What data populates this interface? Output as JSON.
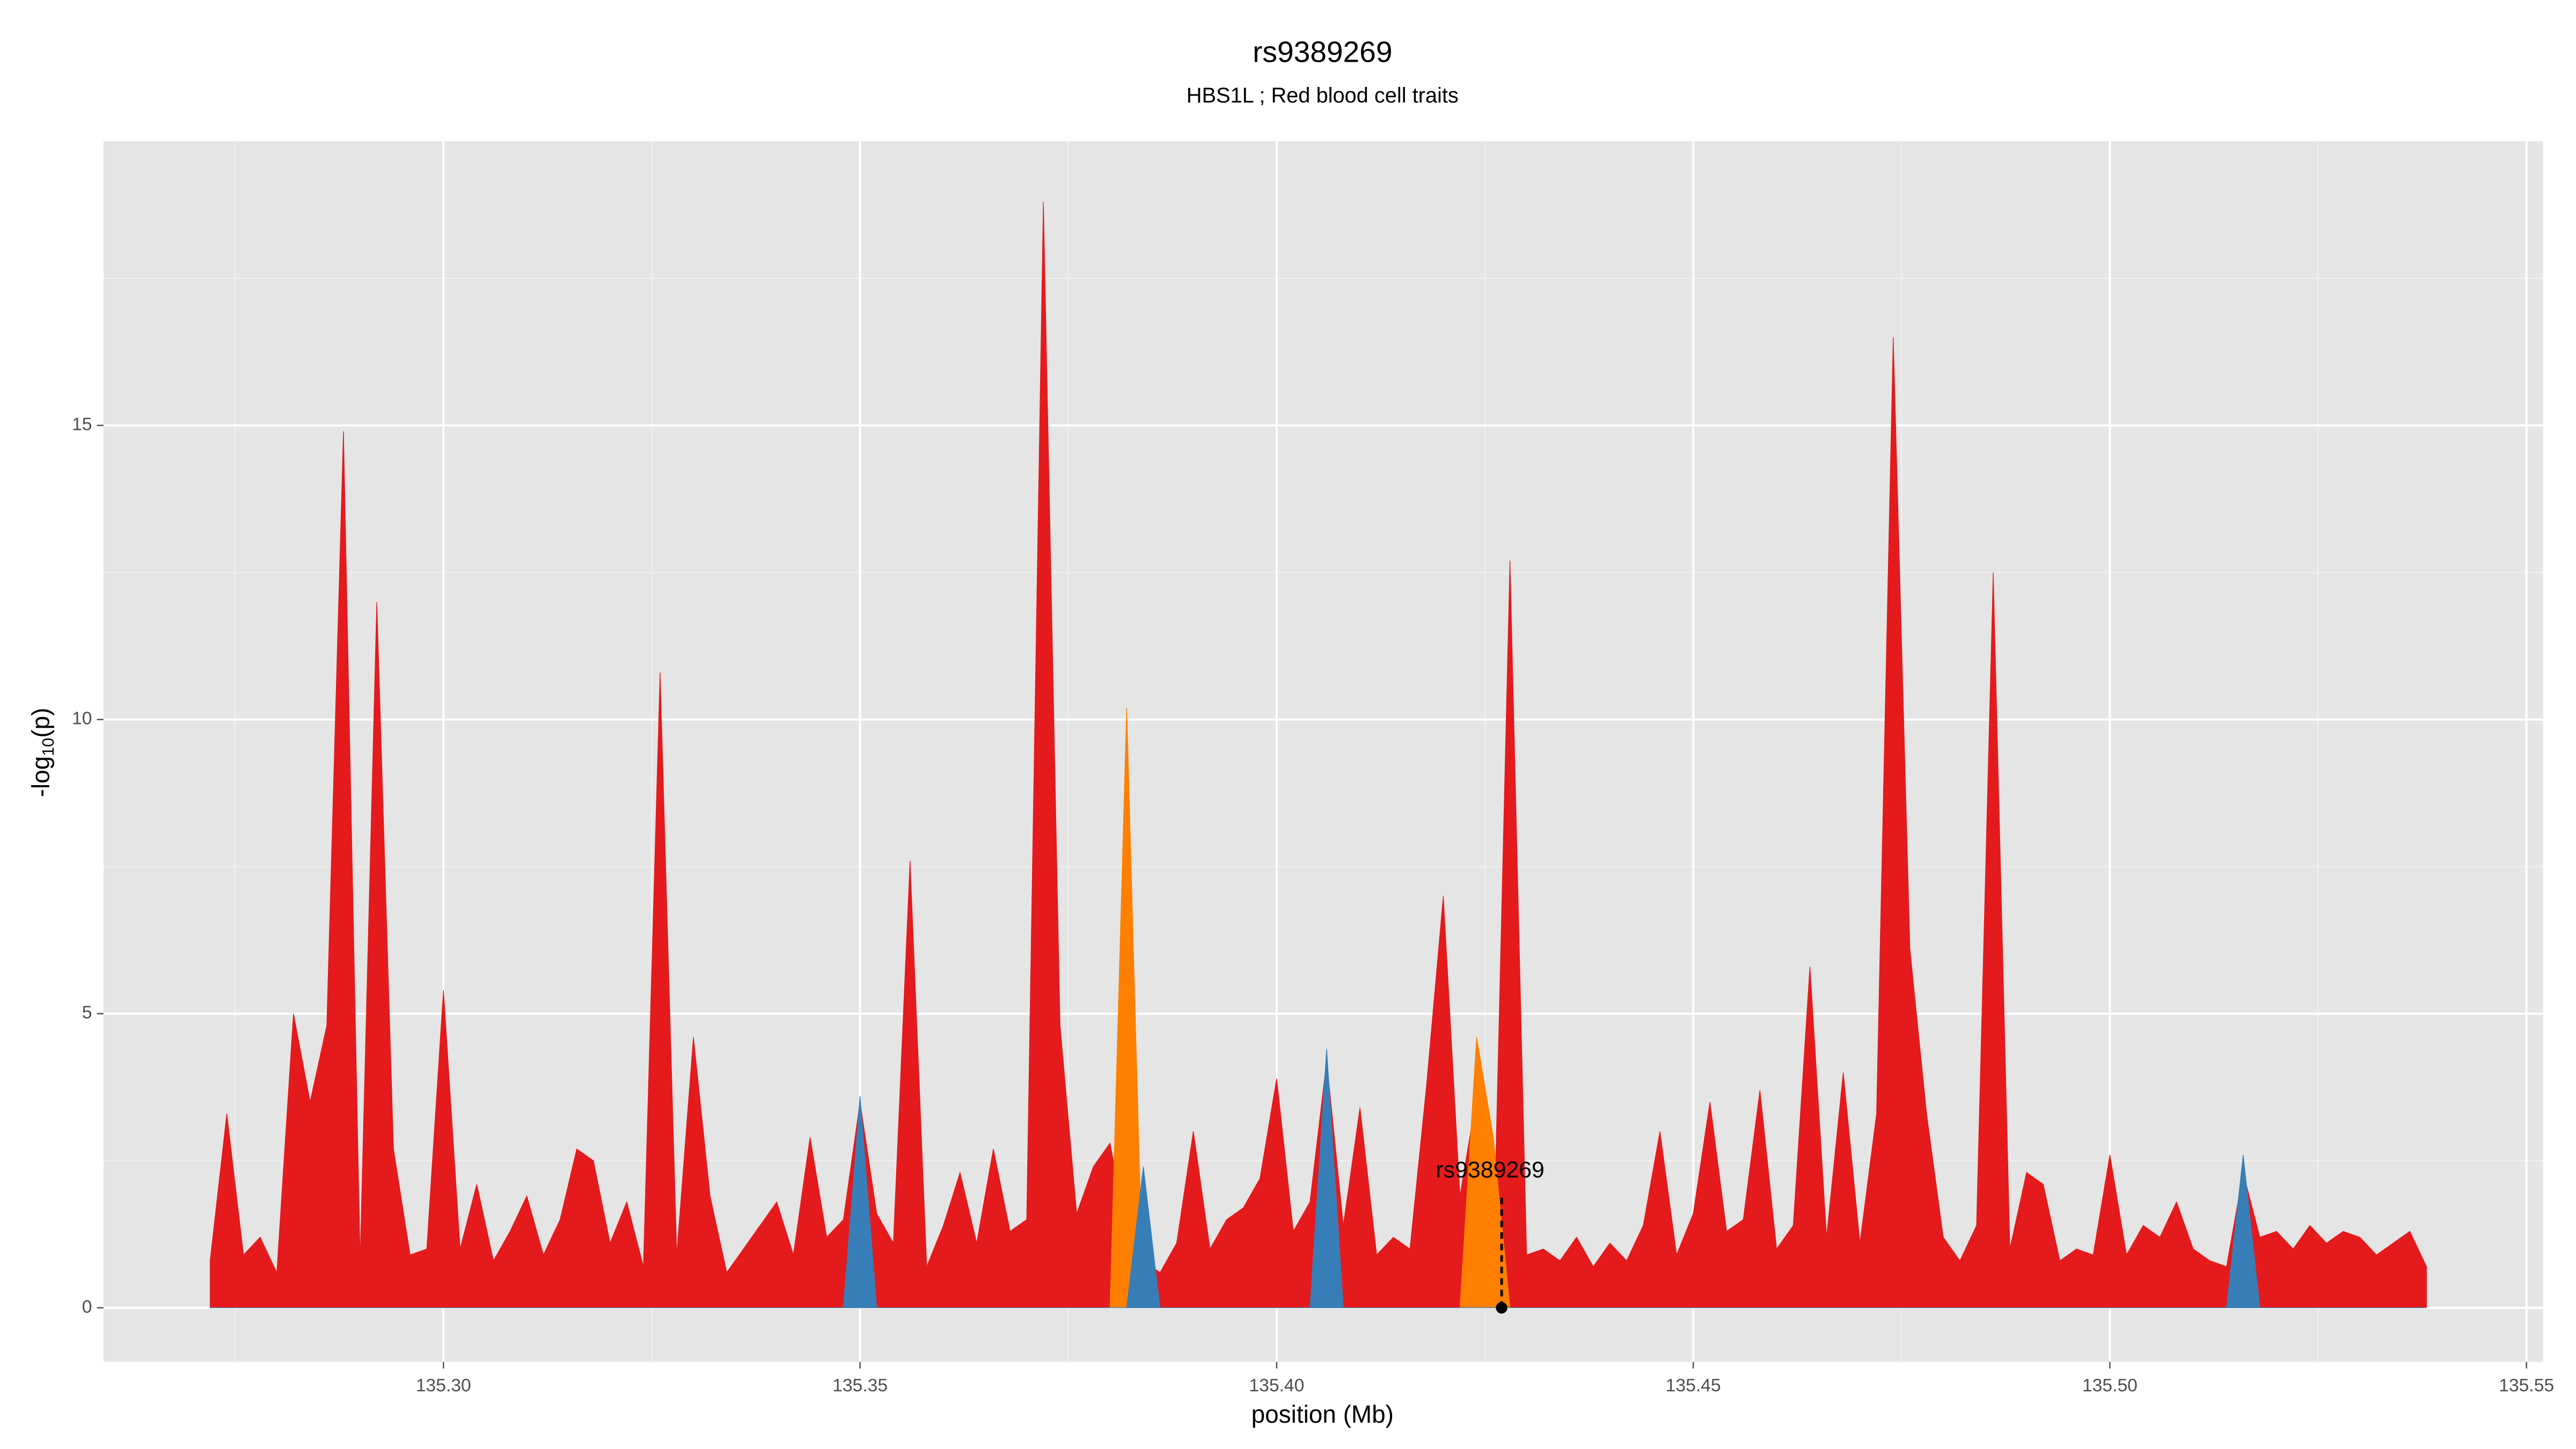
{
  "chart_data": {
    "type": "area",
    "title": "rs9389269",
    "subtitle": "HBS1L ; Red blood cell traits",
    "x_label": "position (Mb)",
    "y_label": {
      "prefix": "-log",
      "subscript": "10",
      "suffix": "(p)"
    },
    "grid": true,
    "x": [
      135.272,
      135.274,
      135.276,
      135.278,
      135.28,
      135.282,
      135.284,
      135.286,
      135.288,
      135.29,
      135.292,
      135.294,
      135.296,
      135.298,
      135.3,
      135.302,
      135.304,
      135.306,
      135.308,
      135.31,
      135.312,
      135.314,
      135.316,
      135.318,
      135.32,
      135.322,
      135.324,
      135.326,
      135.328,
      135.33,
      135.332,
      135.334,
      135.336,
      135.338,
      135.34,
      135.342,
      135.344,
      135.346,
      135.348,
      135.35,
      135.352,
      135.354,
      135.356,
      135.358,
      135.36,
      135.362,
      135.364,
      135.366,
      135.368,
      135.37,
      135.372,
      135.374,
      135.376,
      135.378,
      135.38,
      135.382,
      135.384,
      135.386,
      135.388,
      135.39,
      135.392,
      135.394,
      135.396,
      135.398,
      135.4,
      135.402,
      135.404,
      135.406,
      135.408,
      135.41,
      135.412,
      135.414,
      135.416,
      135.418,
      135.42,
      135.422,
      135.424,
      135.426,
      135.428,
      135.43,
      135.432,
      135.434,
      135.436,
      135.438,
      135.44,
      135.442,
      135.444,
      135.446,
      135.448,
      135.45,
      135.452,
      135.454,
      135.456,
      135.458,
      135.46,
      135.462,
      135.464,
      135.466,
      135.468,
      135.47,
      135.472,
      135.474,
      135.476,
      135.478,
      135.48,
      135.482,
      135.484,
      135.486,
      135.488,
      135.49,
      135.492,
      135.494,
      135.496,
      135.498,
      135.5,
      135.502,
      135.504,
      135.506,
      135.508,
      135.51,
      135.512,
      135.514,
      135.516,
      135.518,
      135.52,
      135.522,
      135.524,
      135.526,
      135.528,
      135.53,
      135.532,
      135.534,
      135.536,
      135.538
    ],
    "series": [
      {
        "color": "#e41a1c",
        "values": [
          0.8,
          3.3,
          0.9,
          1.2,
          0.6,
          5.0,
          3.5,
          4.8,
          14.9,
          0.8,
          12.0,
          2.7,
          0.9,
          1.0,
          5.4,
          1.0,
          2.1,
          0.8,
          1.3,
          1.9,
          0.9,
          1.5,
          2.7,
          2.5,
          1.1,
          1.8,
          0.7,
          10.8,
          0.9,
          4.6,
          1.9,
          0.6,
          1.0,
          1.4,
          1.8,
          0.9,
          2.9,
          1.2,
          1.5,
          3.5,
          1.6,
          1.1,
          7.6,
          0.7,
          1.4,
          2.3,
          1.1,
          2.7,
          1.3,
          1.5,
          18.8,
          4.8,
          1.6,
          2.4,
          2.8,
          1.3,
          0.8,
          0.6,
          1.1,
          3.0,
          1.0,
          1.5,
          1.7,
          2.2,
          3.9,
          1.3,
          1.8,
          4.2,
          1.4,
          3.4,
          0.9,
          1.2,
          1.0,
          3.8,
          7.0,
          1.9,
          3.6,
          0.7,
          12.7,
          0.9,
          1.0,
          0.8,
          1.2,
          0.7,
          1.1,
          0.8,
          1.4,
          3.0,
          0.9,
          1.6,
          3.5,
          1.3,
          1.5,
          3.7,
          1.0,
          1.4,
          5.8,
          1.2,
          4.0,
          1.1,
          3.3,
          16.5,
          6.1,
          3.3,
          1.2,
          0.8,
          1.4,
          12.5,
          1.0,
          2.3,
          2.1,
          0.8,
          1.0,
          0.9,
          2.6,
          0.9,
          1.4,
          1.2,
          1.8,
          1.0,
          0.8,
          0.7,
          2.3,
          1.2,
          1.3,
          1.0,
          1.4,
          1.1,
          1.3,
          1.2,
          0.9,
          1.1,
          1.3,
          0.7
        ]
      },
      {
        "color": "#ff7f00",
        "values": [
          0,
          0,
          0,
          0,
          0,
          0,
          0,
          0,
          0,
          0,
          0,
          0,
          0,
          0,
          0,
          0,
          0,
          0,
          0,
          0,
          0,
          0,
          0,
          0,
          0,
          0,
          0,
          0,
          0,
          0,
          0,
          0,
          0,
          0,
          0,
          0,
          0,
          0,
          0,
          0,
          0,
          0,
          0,
          0,
          0,
          0,
          0,
          0,
          0,
          0,
          0,
          0,
          0,
          0,
          0,
          10.2,
          0,
          0,
          0,
          0,
          0,
          0,
          0,
          0,
          0,
          0,
          0,
          0,
          0,
          0,
          0,
          0,
          0,
          0,
          0,
          0,
          4.6,
          2.9,
          0,
          0,
          0,
          0,
          0,
          0,
          0,
          0,
          0,
          0,
          0,
          0,
          0,
          0,
          0,
          0,
          0,
          0,
          0,
          0,
          0,
          0,
          0,
          0,
          0,
          0,
          0,
          0,
          0,
          0,
          0,
          0,
          0,
          0,
          0,
          0,
          0,
          0,
          0,
          0,
          0,
          0,
          0,
          0,
          0,
          0,
          0,
          0,
          0,
          0,
          0,
          0,
          0,
          0,
          0,
          0
        ]
      },
      {
        "color": "#377eb8",
        "values": [
          0,
          0,
          0,
          0,
          0,
          0,
          0,
          0,
          0,
          0,
          0,
          0,
          0,
          0,
          0,
          0,
          0,
          0,
          0,
          0,
          0,
          0,
          0,
          0,
          0,
          0,
          0,
          0,
          0,
          0,
          0,
          0,
          0,
          0,
          0,
          0,
          0,
          0,
          0,
          3.6,
          0,
          0,
          0,
          0,
          0,
          0,
          0,
          0,
          0,
          0,
          0,
          0,
          0,
          0,
          0,
          0,
          2.4,
          0,
          0,
          0,
          0,
          0,
          0,
          0,
          0,
          0,
          0,
          4.4,
          0,
          0,
          0,
          0,
          0,
          0,
          0,
          0,
          0,
          0,
          0,
          0,
          0,
          0,
          0,
          0,
          0,
          0,
          0,
          0,
          0,
          0,
          0,
          0,
          0,
          0,
          0,
          0,
          0,
          0,
          0,
          0,
          0,
          0,
          0,
          0,
          0,
          0,
          0,
          0,
          0,
          0,
          0,
          0,
          0,
          0,
          0,
          0,
          0,
          0,
          0,
          0,
          0,
          0,
          2.6,
          0,
          0,
          0,
          0,
          0,
          0,
          0,
          0,
          0,
          0,
          0
        ]
      }
    ],
    "annotation": {
      "label": "rs9389269",
      "x": 135.427,
      "y": 0
    },
    "xlim": [
      135.2592,
      135.552
    ],
    "xticks": [
      {
        "value": 135.3,
        "label": "135.30"
      },
      {
        "value": 135.35,
        "label": "135.35"
      },
      {
        "value": 135.4,
        "label": "135.40"
      },
      {
        "value": 135.45,
        "label": "135.45"
      },
      {
        "value": 135.5,
        "label": "135.50"
      },
      {
        "value": 135.55,
        "label": "135.55"
      }
    ],
    "ylim": [
      -0.92,
      19.83
    ],
    "yticks": [
      0,
      5,
      10,
      15
    ]
  }
}
